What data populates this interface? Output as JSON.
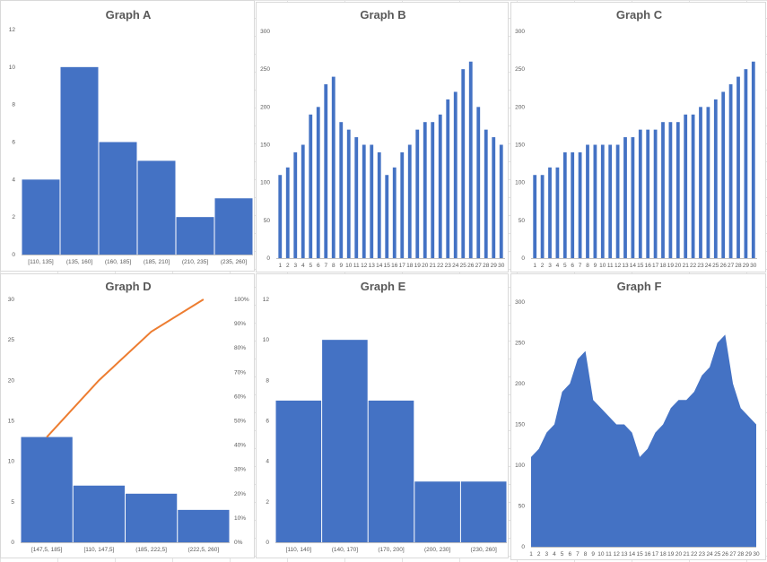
{
  "colors": {
    "bar": "#4472c4",
    "line": "#ed7d31",
    "axis": "#bfbfbf",
    "text": "#595959"
  },
  "chart_data": [
    {
      "id": "A",
      "type": "bar",
      "title": "Graph A",
      "categories": [
        "[110, 135]",
        "(135, 160]",
        "(160, 185]",
        "(185, 210]",
        "(210, 235]",
        "(235, 260]"
      ],
      "values": [
        4,
        10,
        6,
        5,
        2,
        3
      ],
      "ylim": [
        0,
        12
      ],
      "yticks": [
        "0",
        "2",
        "4",
        "6",
        "8",
        "10",
        "12"
      ]
    },
    {
      "id": "B",
      "type": "bar",
      "title": "Graph B",
      "categories": [
        "1",
        "2",
        "3",
        "4",
        "5",
        "6",
        "7",
        "8",
        "9",
        "10",
        "11",
        "12",
        "13",
        "14",
        "15",
        "16",
        "17",
        "18",
        "19",
        "20",
        "21",
        "22",
        "23",
        "24",
        "25",
        "26",
        "27",
        "28",
        "29",
        "30"
      ],
      "values": [
        110,
        120,
        140,
        150,
        190,
        200,
        230,
        240,
        180,
        170,
        160,
        150,
        150,
        140,
        110,
        120,
        140,
        150,
        170,
        180,
        180,
        190,
        210,
        220,
        250,
        260,
        200,
        170,
        160,
        150
      ],
      "ylim": [
        0,
        300
      ],
      "yticks": [
        "0",
        "50",
        "100",
        "150",
        "200",
        "250",
        "300"
      ]
    },
    {
      "id": "C",
      "type": "bar",
      "title": "Graph C",
      "categories": [
        "1",
        "2",
        "3",
        "4",
        "5",
        "6",
        "7",
        "8",
        "9",
        "10",
        "11",
        "12",
        "13",
        "14",
        "15",
        "16",
        "17",
        "18",
        "19",
        "20",
        "21",
        "22",
        "23",
        "24",
        "25",
        "26",
        "27",
        "28",
        "29",
        "30"
      ],
      "values": [
        110,
        110,
        120,
        120,
        140,
        140,
        140,
        150,
        150,
        150,
        150,
        150,
        160,
        160,
        170,
        170,
        170,
        180,
        180,
        180,
        190,
        190,
        200,
        200,
        210,
        220,
        230,
        240,
        250,
        260
      ],
      "ylim": [
        0,
        300
      ],
      "yticks": [
        "0",
        "50",
        "100",
        "150",
        "200",
        "250",
        "300"
      ]
    },
    {
      "id": "D",
      "type": "bar",
      "title": "Graph D",
      "categories": [
        "[147,5, 185]",
        "[110, 147,5]",
        "(185, 222,5]",
        "(222,5, 260]"
      ],
      "values": [
        13,
        7,
        6,
        4
      ],
      "cumulative_pct": [
        43.3,
        66.7,
        86.7,
        100
      ],
      "ylim": [
        0,
        30
      ],
      "yticks": [
        "0",
        "5",
        "10",
        "15",
        "20",
        "25",
        "30"
      ],
      "y2ticks": [
        "0%",
        "10%",
        "20%",
        "30%",
        "40%",
        "50%",
        "60%",
        "70%",
        "80%",
        "90%",
        "100%"
      ]
    },
    {
      "id": "E",
      "type": "bar",
      "title": "Graph E",
      "categories": [
        "[110, 140]",
        "(140, 170]",
        "(170, 200]",
        "(200, 230]",
        "(230, 260]"
      ],
      "values": [
        7,
        10,
        7,
        3,
        3
      ],
      "ylim": [
        0,
        12
      ],
      "yticks": [
        "0",
        "2",
        "4",
        "6",
        "8",
        "10",
        "12"
      ]
    },
    {
      "id": "F",
      "type": "area",
      "title": "Graph F",
      "categories": [
        "1",
        "2",
        "3",
        "4",
        "5",
        "6",
        "7",
        "8",
        "9",
        "10",
        "11",
        "12",
        "13",
        "14",
        "15",
        "16",
        "17",
        "18",
        "19",
        "20",
        "21",
        "22",
        "23",
        "24",
        "25",
        "26",
        "27",
        "28",
        "29",
        "30"
      ],
      "values": [
        110,
        120,
        140,
        150,
        190,
        200,
        230,
        240,
        180,
        170,
        160,
        150,
        150,
        140,
        110,
        120,
        140,
        150,
        170,
        180,
        180,
        190,
        210,
        220,
        250,
        260,
        200,
        170,
        160,
        150
      ],
      "ylim": [
        0,
        300
      ],
      "yticks": [
        "0",
        "50",
        "100",
        "150",
        "200",
        "250",
        "300"
      ]
    }
  ]
}
